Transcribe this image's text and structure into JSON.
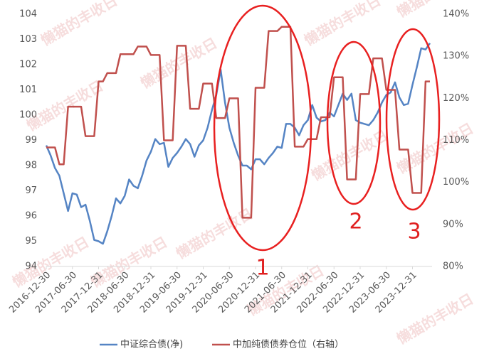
{
  "chart_data": {
    "type": "line",
    "watermark": "懒猫的丰收日",
    "categories": [
      "2016-12-30",
      null,
      null,
      null,
      null,
      null,
      "2017-06-30",
      null,
      null,
      null,
      null,
      null,
      "2017-12-31",
      null,
      null,
      null,
      null,
      null,
      "2018-06-30",
      null,
      null,
      null,
      null,
      null,
      "2018-12-31",
      null,
      null,
      null,
      null,
      null,
      "2019-06-30",
      null,
      null,
      null,
      null,
      null,
      "2019-12-31",
      null,
      null,
      null,
      null,
      null,
      "2020-06-30",
      null,
      null,
      null,
      null,
      null,
      "2020-12-31",
      null,
      null,
      null,
      null,
      null,
      "2021-06-30",
      null,
      null,
      null,
      null,
      null,
      "2021-12-31",
      null,
      null,
      null,
      null,
      null,
      "2022-06-30",
      null,
      null,
      null,
      null,
      null,
      "2022-12-31",
      null,
      null,
      null,
      null,
      null,
      "2023-06-30",
      null,
      null,
      null,
      null,
      null,
      "2023-12-31",
      null,
      null,
      null,
      null
    ],
    "series": [
      {
        "name": "中证综合债(净)",
        "color": "#5584c4",
        "values": [
          98.8,
          98.4,
          97.9,
          97.6,
          96.9,
          96.2,
          96.9,
          96.85,
          96.35,
          96.45,
          95.8,
          95.05,
          95.0,
          94.9,
          95.4,
          96.0,
          96.7,
          96.5,
          96.8,
          97.45,
          97.2,
          97.1,
          97.6,
          98.2,
          98.55,
          99.05,
          98.85,
          98.9,
          97.95,
          98.3,
          98.5,
          98.75,
          99.05,
          98.85,
          98.35,
          98.8,
          99.0,
          99.5,
          100.2,
          100.8,
          101.8,
          100.5,
          99.5,
          98.9,
          98.4,
          98.0,
          98.0,
          97.85,
          98.25,
          98.25,
          98.05,
          98.3,
          98.5,
          98.75,
          98.7,
          99.65,
          99.65,
          99.5,
          99.2,
          99.6,
          99.8,
          100.4,
          99.9,
          99.75,
          99.8,
          100.1,
          99.95,
          100.4,
          100.85,
          100.6,
          100.85,
          99.8,
          99.7,
          99.65,
          99.6,
          99.8,
          100.1,
          100.5,
          100.8,
          100.9,
          101.3,
          100.7,
          100.4,
          100.45,
          101.2,
          101.9,
          102.65,
          102.6,
          102.85
        ]
      },
      {
        "name": "中加纯债债券仓位（右轴）",
        "color": "#c0504d",
        "axis": "y2",
        "values": [
          108.3,
          108.3,
          108.3,
          104.3,
          104.3,
          118,
          118,
          118,
          118,
          111,
          111,
          111,
          124,
          124,
          126,
          126,
          126,
          130.5,
          130.5,
          130.5,
          130.5,
          132.3,
          132.3,
          132.3,
          130.3,
          130.3,
          130.3,
          110,
          110,
          110,
          132.5,
          132.5,
          132.5,
          117.5,
          117.5,
          117.5,
          123.5,
          123.5,
          123.5,
          115.3,
          115.3,
          115.3,
          120,
          120,
          120,
          91.6,
          91.6,
          91.6,
          122.5,
          122.5,
          122.5,
          136,
          136,
          136,
          137,
          137,
          137,
          108.5,
          108.5,
          108.5,
          110.3,
          110.3,
          110.3,
          115.5,
          115.5,
          115.5,
          125,
          125,
          125,
          100.7,
          100.7,
          100.7,
          121,
          121,
          121,
          129.5,
          129.5,
          129.5,
          122,
          122,
          122,
          107.8,
          107.8,
          107.8,
          97.5,
          97.5,
          97.5,
          124,
          124
        ]
      }
    ],
    "ylim": [
      94,
      104
    ],
    "yticks": [
      94,
      95,
      96,
      97,
      98,
      99,
      100,
      101,
      102,
      103,
      104
    ],
    "y2lim": [
      80,
      140
    ],
    "y2ticks": [
      {
        "value": 80,
        "label": "80%"
      },
      {
        "value": 90,
        "label": "90%"
      },
      {
        "value": 100,
        "label": "100%"
      },
      {
        "value": 110,
        "label": "110%"
      },
      {
        "value": 120,
        "label": "120%"
      },
      {
        "value": 130,
        "label": "130%"
      },
      {
        "value": 140,
        "label": "140%"
      }
    ],
    "annotations": [
      "1",
      "2",
      "3"
    ],
    "grid": false
  }
}
